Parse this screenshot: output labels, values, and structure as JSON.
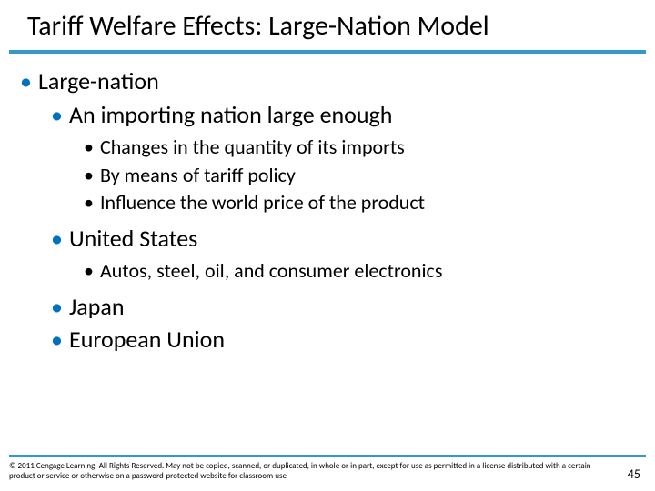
{
  "title": "Tariff Welfare Effects: Large-Nation Model",
  "accent_color": "#3399cc",
  "bullet_color": "#0070c0",
  "body": {
    "lvl1_a": "Large-nation",
    "lvl2_a": "An importing nation large enough",
    "lvl3_a": "Changes in the quantity of its imports",
    "lvl3_b": "By means of tariff policy",
    "lvl3_c": "Influence the world price of the product",
    "lvl2_b": "United States",
    "lvl3_d": "Autos, steel, oil, and consumer electronics",
    "lvl2_c": "Japan",
    "lvl2_d": "European Union"
  },
  "footer": {
    "copyright": "© 2011 Cengage Learning. All Rights Reserved. May not be copied, scanned, or duplicated, in whole or in part, except for use as permitted in a license distributed with a certain product or service or otherwise on a password-protected website for classroom use",
    "page": "45"
  }
}
